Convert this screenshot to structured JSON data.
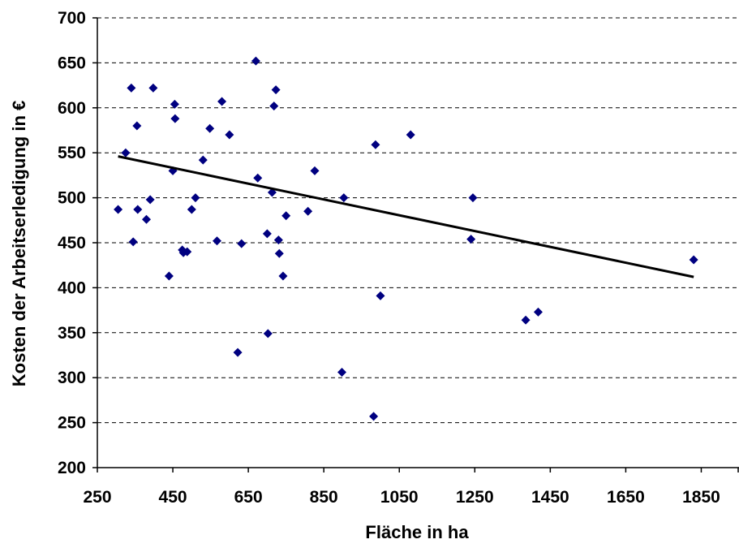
{
  "chart_data": {
    "type": "scatter",
    "xlabel": "Fläche in ha",
    "ylabel": "Kosten der Arbeitserledigung in €",
    "xlim": [
      250,
      1950
    ],
    "ylim": [
      200,
      700
    ],
    "x_ticks": [
      "250",
      "450",
      "650",
      "850",
      "1050",
      "1250",
      "1450",
      "1650",
      "1850"
    ],
    "y_ticks": [
      "200",
      "250",
      "300",
      "350",
      "400",
      "450",
      "500",
      "550",
      "600",
      "650",
      "700"
    ],
    "grid": "horizontal dashed",
    "marker_color": "#000080",
    "series": [
      {
        "points": [
          [
            305,
            487
          ],
          [
            325,
            550
          ],
          [
            340,
            622
          ],
          [
            345,
            451
          ],
          [
            355,
            580
          ],
          [
            357,
            487
          ],
          [
            380,
            476
          ],
          [
            390,
            498
          ],
          [
            398,
            622
          ],
          [
            440,
            413
          ],
          [
            450,
            530
          ],
          [
            455,
            604
          ],
          [
            456,
            588
          ],
          [
            475,
            442
          ],
          [
            478,
            439
          ],
          [
            488,
            440
          ],
          [
            500,
            487
          ],
          [
            510,
            500
          ],
          [
            530,
            542
          ],
          [
            548,
            577
          ],
          [
            567,
            452
          ],
          [
            580,
            607
          ],
          [
            600,
            570
          ],
          [
            622,
            328
          ],
          [
            632,
            449
          ],
          [
            670,
            652
          ],
          [
            675,
            522
          ],
          [
            700,
            460
          ],
          [
            702,
            349
          ],
          [
            713,
            506
          ],
          [
            718,
            602
          ],
          [
            723,
            620
          ],
          [
            730,
            453
          ],
          [
            732,
            438
          ],
          [
            742,
            413
          ],
          [
            750,
            480
          ],
          [
            808,
            485
          ],
          [
            826,
            530
          ],
          [
            898,
            306
          ],
          [
            903,
            500
          ],
          [
            982,
            257
          ],
          [
            987,
            559
          ],
          [
            1000,
            391
          ],
          [
            1080,
            570
          ],
          [
            1240,
            454
          ],
          [
            1245,
            500
          ],
          [
            1385,
            364
          ],
          [
            1418,
            373
          ],
          [
            1830,
            431
          ]
        ]
      }
    ],
    "trendline": {
      "color": "#000000",
      "points": [
        [
          305,
          546
        ],
        [
          1830,
          412
        ]
      ]
    }
  }
}
